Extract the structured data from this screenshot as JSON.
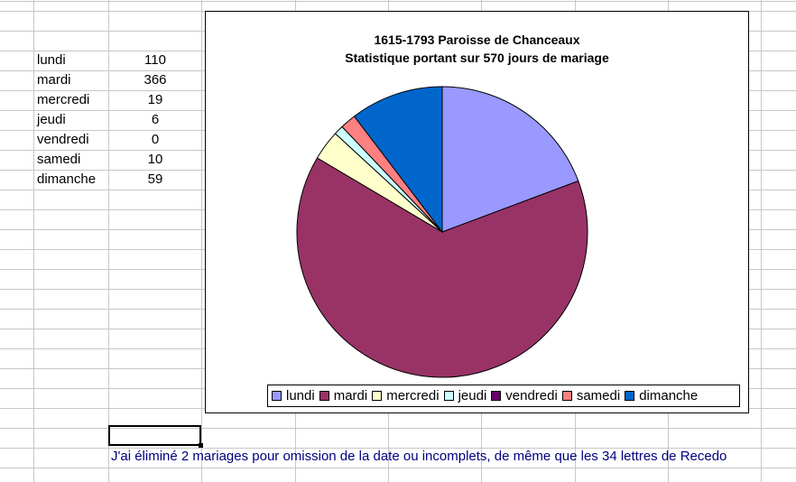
{
  "table": {
    "rows": [
      {
        "label": "lundi",
        "value": "110"
      },
      {
        "label": "mardi",
        "value": "366"
      },
      {
        "label": "mercredi",
        "value": "19"
      },
      {
        "label": "jeudi",
        "value": "6"
      },
      {
        "label": "vendredi",
        "value": "0"
      },
      {
        "label": "samedi",
        "value": "10"
      },
      {
        "label": "dimanche",
        "value": "59"
      }
    ]
  },
  "note": {
    "text": "J'ai éliminé 2 mariages pour omission de la date ou incomplets, de même que les 34 lettres de Recedo",
    "color": "#000080"
  },
  "chart_data": {
    "type": "pie",
    "title": "1615-1793 Paroisse de Chanceaux",
    "subtitle": "Statistique portant sur 570 jours de mariage",
    "categories": [
      "lundi",
      "mardi",
      "mercredi",
      "jeudi",
      "vendredi",
      "samedi",
      "dimanche"
    ],
    "values": [
      110,
      366,
      19,
      6,
      0,
      10,
      59
    ],
    "colors": [
      "#9999ff",
      "#993366",
      "#ffffcc",
      "#ccffff",
      "#660066",
      "#ff8080",
      "#0066cc"
    ],
    "start_angle": "12 o'clock, clockwise",
    "legend": "bottom",
    "legend_labels": [
      "lundi",
      "mardi",
      "mercredi",
      "jeudi",
      "vendredi",
      "samedi",
      "dimanche"
    ]
  }
}
